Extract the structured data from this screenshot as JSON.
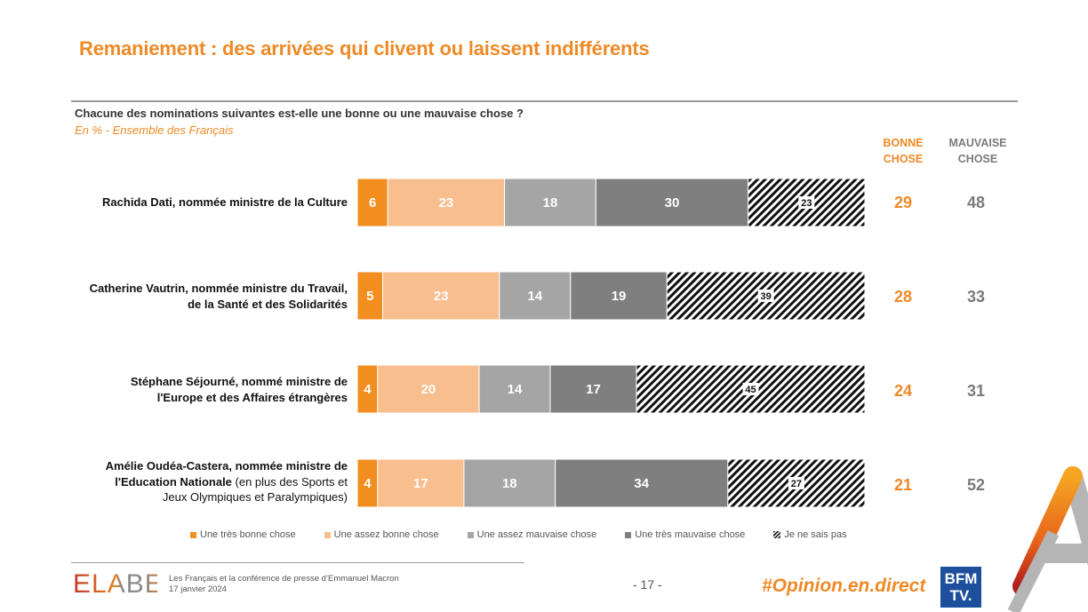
{
  "header": {
    "title": "Remaniement : des arrivées qui clivent ou laissent indifférents",
    "question": "Chacune des nominations suivantes est-elle une bonne ou une mauvaise chose ?",
    "subtitle": "En % - Ensemble des Français"
  },
  "columns": {
    "bonne": [
      "BONNE",
      "CHOSE"
    ],
    "mauvaise": [
      "MAUVAISE",
      "CHOSE"
    ]
  },
  "chart_data": {
    "type": "bar",
    "orientation": "horizontal",
    "stacked": true,
    "title": "Chacune des nominations suivantes est-elle une bonne ou une mauvaise chose ?",
    "unit": "%",
    "xlim": [
      0,
      100
    ],
    "categories": [
      "Rachida Dati, nommée ministre de la Culture",
      "Catherine Vautrin, nommée ministre du Travail, de la Santé et des Solidarités",
      "Stéphane Séjourné, nommé ministre de l'Europe et des Affaires étrangères",
      "Amélie Oudéa-Castera, nommée ministre de l'Education Nationale (en plus des Sports et Jeux Olympiques et Paralympiques)"
    ],
    "series": [
      {
        "name": "Une très bonne chose",
        "color": "#F28E1F",
        "values": [
          6,
          5,
          4,
          4
        ]
      },
      {
        "name": "Une assez bonne chose",
        "color": "#F8BE8E",
        "values": [
          23,
          23,
          20,
          17
        ]
      },
      {
        "name": "Une assez mauvaise chose",
        "color": "#A5A5A5",
        "values": [
          18,
          14,
          14,
          18
        ]
      },
      {
        "name": "Une très mauvaise chose",
        "color": "#7F7F7F",
        "values": [
          30,
          19,
          17,
          34
        ]
      },
      {
        "name": "Je ne sais pas",
        "color": "hatch",
        "values": [
          23,
          39,
          45,
          27
        ]
      }
    ],
    "totals": {
      "bonne_chose": [
        29,
        28,
        24,
        21
      ],
      "mauvaise_chose": [
        48,
        33,
        31,
        52
      ]
    },
    "legend_position": "bottom"
  },
  "rows": [
    {
      "label_lines": [
        "Rachida Dati, nommée ministre de la Culture"
      ]
    },
    {
      "label_lines": [
        "Catherine Vautrin, nommée ministre du Travail,",
        "de la Santé et des Solidarités"
      ]
    },
    {
      "label_lines": [
        "Stéphane Séjourné, nommé ministre de",
        "l'Europe et des Affaires étrangères"
      ]
    },
    {
      "label_lines": [
        "Amélie Oudéa-Castera, nommée ministre de"
      ],
      "label_bold2": "l'Education Nationale",
      "label_norm2": " (en plus des Sports et",
      "label_norm3": "Jeux Olympiques et Paralympiques)"
    }
  ],
  "footer": {
    "logo": "ELABE",
    "study": "Les Français et la conférence de presse d’Emmanuel Macron",
    "date": "17 janvier 2024",
    "page": "- 17 -",
    "hashtag": "#Opinion.en.direct",
    "bfm_line1": "BFM",
    "bfm_line2": "TV."
  }
}
